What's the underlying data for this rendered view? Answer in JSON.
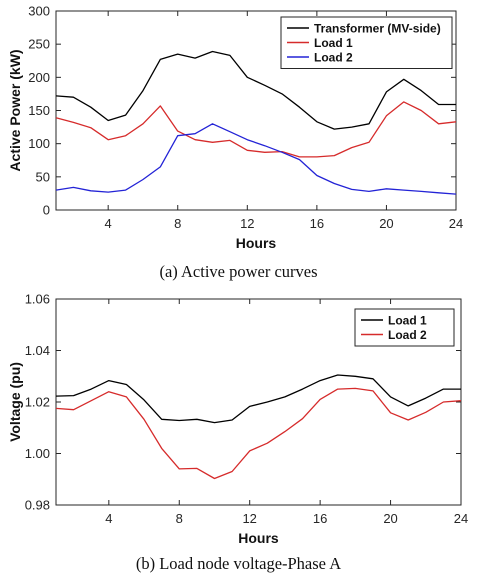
{
  "chart_data": [
    {
      "type": "line",
      "xlabel": "Hours",
      "ylabel": "Active Power (kW)",
      "xlim": [
        1,
        24
      ],
      "ylim": [
        0,
        300
      ],
      "xticks": [
        4,
        8,
        12,
        16,
        20,
        24
      ],
      "yticks": [
        0,
        50,
        100,
        150,
        200,
        250,
        300
      ],
      "legend_position": "top-right",
      "caption": "(a) Active power curves",
      "series": [
        {
          "name": "Transformer (MV-side)",
          "color": "#000000",
          "values": [
            172,
            170,
            155,
            135,
            143,
            180,
            227,
            235,
            229,
            239,
            233,
            200,
            188,
            175,
            155,
            133,
            122,
            125,
            130,
            178,
            197,
            180,
            159,
            159
          ]
        },
        {
          "name": "Load 1",
          "color": "#d62b2b",
          "values": [
            139,
            132,
            124,
            106,
            112,
            130,
            157,
            119,
            106,
            102,
            105,
            90,
            87,
            88,
            80,
            80,
            82,
            94,
            102,
            142,
            163,
            150,
            130,
            133
          ]
        },
        {
          "name": "Load 2",
          "color": "#2323d6",
          "values": [
            30,
            34,
            29,
            27,
            30,
            46,
            65,
            112,
            115,
            130,
            118,
            106,
            97,
            87,
            76,
            52,
            40,
            31,
            28,
            32,
            30,
            28,
            26,
            24
          ]
        }
      ],
      "x": [
        1,
        2,
        3,
        4,
        5,
        6,
        7,
        8,
        9,
        10,
        11,
        12,
        13,
        14,
        15,
        16,
        17,
        18,
        19,
        20,
        21,
        22,
        23,
        24
      ]
    },
    {
      "type": "line",
      "xlabel": "Hours",
      "ylabel": "Voltage (pu)",
      "xlim": [
        1,
        24
      ],
      "ylim": [
        0.98,
        1.06
      ],
      "xticks": [
        4,
        8,
        12,
        16,
        20,
        24
      ],
      "yticks": [
        "0.98",
        "1.00",
        "1.02",
        "1.04",
        "1.06"
      ],
      "legend_position": "top-right",
      "caption": "(b) Load node voltage-Phase A",
      "series": [
        {
          "name": "Load 1",
          "color": "#000000",
          "values": [
            1.0223,
            1.0225,
            1.025,
            1.0283,
            1.0268,
            1.0208,
            1.0133,
            1.0128,
            1.0133,
            1.012,
            1.013,
            1.0183,
            1.02,
            1.022,
            1.025,
            1.0283,
            1.0305,
            1.03,
            1.029,
            1.022,
            1.0185,
            1.0215,
            1.025,
            1.025
          ]
        },
        {
          "name": "Load 2",
          "color": "#d62b2b",
          "values": [
            1.0175,
            1.017,
            1.0205,
            1.024,
            1.022,
            1.0133,
            1.002,
            0.994,
            0.9942,
            0.9903,
            0.993,
            1.001,
            1.004,
            1.0085,
            1.0135,
            1.021,
            1.025,
            1.0253,
            1.0243,
            1.0158,
            1.013,
            1.016,
            1.02,
            1.0205
          ]
        }
      ],
      "x": [
        1,
        2,
        3,
        4,
        5,
        6,
        7,
        8,
        9,
        10,
        11,
        12,
        13,
        14,
        15,
        16,
        17,
        18,
        19,
        20,
        21,
        22,
        23,
        24
      ]
    }
  ]
}
